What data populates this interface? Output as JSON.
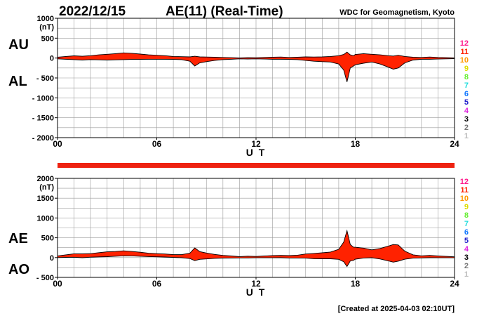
{
  "header": {
    "date": "2022/12/15",
    "title": "AE(11) (Real-Time)",
    "source": "WDC for Geomagnetism, Kyoto"
  },
  "footer": {
    "created": "[Created at 2025-04-03 02:10UT]"
  },
  "colors": {
    "fill": "#ff2200",
    "grid": "#9a9a9a",
    "axis": "#000000",
    "separator_bar": "#ee2211"
  },
  "station_count_legend": [
    {
      "label": "12",
      "color": "#ff1a8c"
    },
    {
      "label": "11",
      "color": "#ff2200"
    },
    {
      "label": "10",
      "color": "#ff9900"
    },
    {
      "label": "9",
      "color": "#dddd00"
    },
    {
      "label": "8",
      "color": "#66ee33"
    },
    {
      "label": "7",
      "color": "#22dddd"
    },
    {
      "label": "6",
      "color": "#1177ff"
    },
    {
      "label": "5",
      "color": "#2222cc"
    },
    {
      "label": "4",
      "color": "#dd22dd"
    },
    {
      "label": "3",
      "color": "#000000"
    },
    {
      "label": "2",
      "color": "#777777"
    },
    {
      "label": "1",
      "color": "#bbbbbb"
    }
  ],
  "chart_data": [
    {
      "type": "area",
      "upper_label": "AU",
      "lower_label": "AL",
      "ylabel_unit": "(nT)",
      "xlabel": "U T",
      "ylim": [
        -2000,
        1000
      ],
      "yticks": [
        {
          "value": 1000,
          "label": "1000"
        },
        {
          "value": 500,
          "label": "500"
        },
        {
          "value": 0,
          "label": "0"
        },
        {
          "value": -500,
          "label": "- 500"
        },
        {
          "value": -1000,
          "label": "- 1000"
        },
        {
          "value": -1500,
          "label": "- 1500"
        },
        {
          "value": -2000,
          "label": "- 2000"
        }
      ],
      "xlim": [
        0,
        24
      ],
      "xticks": [
        {
          "value": 0,
          "label": "00"
        },
        {
          "value": 6,
          "label": "06"
        },
        {
          "value": 12,
          "label": "12"
        },
        {
          "value": 18,
          "label": "18"
        },
        {
          "value": 24,
          "label": "24"
        }
      ],
      "grid": true,
      "series": [
        {
          "name": "AU",
          "x": [
            0,
            0.5,
            1,
            1.5,
            2,
            2.5,
            3,
            3.5,
            4,
            4.5,
            5,
            5.5,
            6,
            6.5,
            7,
            7.5,
            8,
            8.3,
            8.6,
            9,
            9.5,
            10,
            10.5,
            11,
            11.5,
            12,
            12.5,
            13,
            13.5,
            14,
            14.5,
            15,
            15.5,
            16,
            16.5,
            17,
            17.3,
            17.5,
            17.7,
            17.9,
            18,
            18.5,
            19,
            19.5,
            20,
            20.3,
            20.6,
            21,
            21.5,
            22,
            22.5,
            23,
            23.5,
            24
          ],
          "values": [
            20,
            40,
            55,
            45,
            60,
            80,
            95,
            110,
            130,
            120,
            100,
            80,
            70,
            60,
            40,
            35,
            30,
            45,
            30,
            25,
            20,
            15,
            10,
            5,
            10,
            8,
            15,
            20,
            25,
            15,
            20,
            30,
            25,
            30,
            40,
            60,
            90,
            150,
            80,
            60,
            90,
            110,
            95,
            80,
            60,
            50,
            70,
            40,
            20,
            15,
            25,
            15,
            10,
            5
          ]
        },
        {
          "name": "AL",
          "x": [
            0,
            0.5,
            1,
            1.5,
            2,
            2.5,
            3,
            3.5,
            4,
            4.5,
            5,
            5.5,
            6,
            6.5,
            7,
            7.5,
            8,
            8.3,
            8.6,
            9,
            9.5,
            10,
            10.5,
            11,
            11.5,
            12,
            12.5,
            13,
            13.5,
            14,
            14.5,
            15,
            15.5,
            16,
            16.5,
            17,
            17.3,
            17.5,
            17.7,
            17.9,
            18,
            18.5,
            19,
            19.5,
            20,
            20.3,
            20.6,
            21,
            21.5,
            22,
            22.5,
            23,
            23.5,
            24
          ],
          "values": [
            -20,
            -30,
            -40,
            -50,
            -40,
            -45,
            -50,
            -45,
            -40,
            -35,
            -35,
            -30,
            -30,
            -30,
            -35,
            -40,
            -80,
            -200,
            -120,
            -90,
            -60,
            -40,
            -30,
            -20,
            -25,
            -20,
            -25,
            -30,
            -30,
            -35,
            -40,
            -60,
            -80,
            -90,
            -100,
            -150,
            -300,
            -600,
            -250,
            -200,
            -170,
            -130,
            -100,
            -150,
            -230,
            -280,
            -250,
            -120,
            -50,
            -30,
            -30,
            -25,
            -20,
            -15
          ]
        }
      ]
    },
    {
      "type": "area",
      "upper_label": "AE",
      "lower_label": "AO",
      "ylabel_unit": "(nT)",
      "xlabel": "U T",
      "ylim": [
        -500,
        2000
      ],
      "yticks": [
        {
          "value": 2000,
          "label": "2000"
        },
        {
          "value": 1500,
          "label": "1500"
        },
        {
          "value": 1000,
          "label": "1000"
        },
        {
          "value": 500,
          "label": "500"
        },
        {
          "value": 0,
          "label": "0"
        },
        {
          "value": -500,
          "label": "- 500"
        }
      ],
      "xlim": [
        0,
        24
      ],
      "xticks": [
        {
          "value": 0,
          "label": "00"
        },
        {
          "value": 6,
          "label": "06"
        },
        {
          "value": 12,
          "label": "12"
        },
        {
          "value": 18,
          "label": "18"
        },
        {
          "value": 24,
          "label": "24"
        }
      ],
      "grid": true,
      "series": [
        {
          "name": "AE",
          "x": [
            0,
            0.5,
            1,
            1.5,
            2,
            2.5,
            3,
            3.5,
            4,
            4.5,
            5,
            5.5,
            6,
            6.5,
            7,
            7.5,
            8,
            8.3,
            8.6,
            9,
            9.5,
            10,
            10.5,
            11,
            11.5,
            12,
            12.5,
            13,
            13.5,
            14,
            14.5,
            15,
            15.5,
            16,
            16.5,
            17,
            17.3,
            17.5,
            17.7,
            17.9,
            18,
            18.5,
            19,
            19.5,
            20,
            20.3,
            20.6,
            21,
            21.5,
            22,
            22.5,
            23,
            23.5,
            24
          ],
          "values": [
            40,
            70,
            95,
            95,
            100,
            125,
            145,
            155,
            170,
            155,
            135,
            110,
            100,
            90,
            75,
            75,
            110,
            245,
            150,
            115,
            80,
            55,
            40,
            25,
            35,
            28,
            40,
            50,
            55,
            50,
            60,
            90,
            105,
            120,
            140,
            210,
            390,
            680,
            330,
            260,
            260,
            240,
            195,
            230,
            290,
            330,
            320,
            160,
            70,
            45,
            55,
            40,
            30,
            20
          ]
        },
        {
          "name": "AO",
          "x": [
            0,
            0.5,
            1,
            1.5,
            2,
            2.5,
            3,
            3.5,
            4,
            4.5,
            5,
            5.5,
            6,
            6.5,
            7,
            7.5,
            8,
            8.3,
            8.6,
            9,
            9.5,
            10,
            10.5,
            11,
            11.5,
            12,
            12.5,
            13,
            13.5,
            14,
            14.5,
            15,
            15.5,
            16,
            16.5,
            17,
            17.3,
            17.5,
            17.7,
            17.9,
            18,
            18.5,
            19,
            19.5,
            20,
            20.3,
            20.6,
            21,
            21.5,
            22,
            22.5,
            23,
            23.5,
            24
          ],
          "values": [
            0,
            5,
            8,
            -3,
            10,
            18,
            23,
            33,
            45,
            43,
            33,
            25,
            20,
            15,
            3,
            -3,
            -25,
            -78,
            -45,
            -33,
            -20,
            -13,
            -10,
            -8,
            -8,
            -6,
            -5,
            -5,
            -3,
            -10,
            -10,
            -15,
            -28,
            -30,
            -30,
            -45,
            -105,
            -225,
            -85,
            -70,
            -40,
            -10,
            -3,
            -35,
            -85,
            -115,
            -90,
            -40,
            -15,
            -8,
            -3,
            -5,
            -5,
            -5
          ]
        }
      ]
    }
  ]
}
